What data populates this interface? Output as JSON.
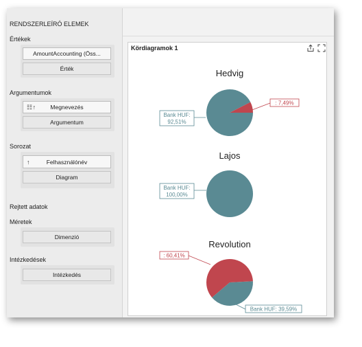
{
  "sidebar": {
    "title": "RENDSZERLEÍRÓ ELEMEK",
    "values": {
      "label": "Értékek",
      "items": [
        "AmountAccounting (Öss..."
      ],
      "placeholder": "Érték"
    },
    "arguments": {
      "label": "Argumentumok",
      "items": [
        "Megnevezés"
      ],
      "placeholder": "Argumentum"
    },
    "series": {
      "label": "Sorozat",
      "items": [
        "Felhasználónév"
      ],
      "placeholder": "Diagram"
    },
    "hidden": {
      "label": "Rejtett adatok"
    },
    "dimensions": {
      "label": "Méretek",
      "placeholder": "Dimenzió"
    },
    "measures": {
      "label": "Intézkedések",
      "placeholder": "Intézkedés"
    }
  },
  "panel": {
    "title": "Kördiagramok 1",
    "export_icon": "export-icon",
    "maximize_icon": "maximize-icon"
  },
  "chart_data": [
    {
      "type": "pie",
      "title": "Hedvig",
      "slices": [
        {
          "label": "Bank HUF:",
          "pct_label": "92,51%",
          "value": 92.51,
          "color": "#5a8a93"
        },
        {
          "label": "",
          "pct_label": ": 7,49%",
          "value": 7.49,
          "color": "#c0464e"
        }
      ]
    },
    {
      "type": "pie",
      "title": "Lajos",
      "slices": [
        {
          "label": "Bank HUF:",
          "pct_label": "100,00%",
          "value": 100.0,
          "color": "#5a8a93"
        }
      ]
    },
    {
      "type": "pie",
      "title": "Revolution",
      "slices": [
        {
          "label": "Bank HUF: 39,59%",
          "pct_label": "",
          "value": 39.59,
          "color": "#5a8a93"
        },
        {
          "label": "",
          "pct_label": ": 60,41%",
          "value": 60.41,
          "color": "#c0464e"
        }
      ]
    }
  ]
}
